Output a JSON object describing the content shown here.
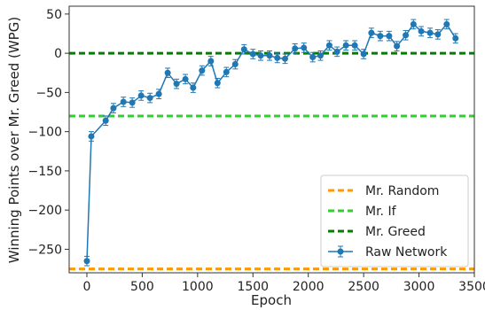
{
  "chart_data": {
    "type": "line",
    "title": "",
    "xlabel": "Epoch",
    "ylabel": "Winning Points over Mr. Greed (WPG)",
    "xlim": [
      -160,
      3500
    ],
    "ylim": [
      -280,
      60
    ],
    "xticks": [
      0,
      500,
      1000,
      1500,
      2000,
      2500,
      3000,
      3500
    ],
    "yticks": [
      -250,
      -200,
      -150,
      -100,
      -50,
      0,
      50
    ],
    "xtick_labels": [
      "0",
      "500",
      "1000",
      "1500",
      "2000",
      "2500",
      "3000",
      "3500"
    ],
    "ytick_labels": [
      "−250",
      "−200",
      "−150",
      "−100",
      "−50",
      "0",
      "50"
    ],
    "grid": false,
    "legend_position": "bottom-right",
    "reference_lines": [
      {
        "name": "Mr. Random",
        "y": -275,
        "color": "#ff9900"
      },
      {
        "name": "Mr. If",
        "y": -80,
        "color": "#33cc33"
      },
      {
        "name": "Mr. Greed",
        "y": 0,
        "color": "#008000"
      }
    ],
    "series": [
      {
        "name": "Raw Network",
        "color": "#1f77b4",
        "error": 6,
        "points": [
          {
            "x": 0,
            "y": -265
          },
          {
            "x": 40,
            "y": -106
          },
          {
            "x": 170,
            "y": -86
          },
          {
            "x": 240,
            "y": -70
          },
          {
            "x": 330,
            "y": -62
          },
          {
            "x": 410,
            "y": -63
          },
          {
            "x": 490,
            "y": -54
          },
          {
            "x": 570,
            "y": -57
          },
          {
            "x": 650,
            "y": -52
          },
          {
            "x": 730,
            "y": -25
          },
          {
            "x": 810,
            "y": -39
          },
          {
            "x": 890,
            "y": -33
          },
          {
            "x": 960,
            "y": -44
          },
          {
            "x": 1040,
            "y": -22
          },
          {
            "x": 1120,
            "y": -10
          },
          {
            "x": 1180,
            "y": -38
          },
          {
            "x": 1260,
            "y": -24
          },
          {
            "x": 1340,
            "y": -14
          },
          {
            "x": 1420,
            "y": 5
          },
          {
            "x": 1500,
            "y": -1
          },
          {
            "x": 1570,
            "y": -3
          },
          {
            "x": 1650,
            "y": -3
          },
          {
            "x": 1720,
            "y": -6
          },
          {
            "x": 1790,
            "y": -7
          },
          {
            "x": 1880,
            "y": 6
          },
          {
            "x": 1960,
            "y": 7
          },
          {
            "x": 2040,
            "y": -5
          },
          {
            "x": 2110,
            "y": -3
          },
          {
            "x": 2190,
            "y": 10
          },
          {
            "x": 2260,
            "y": 2
          },
          {
            "x": 2340,
            "y": 10
          },
          {
            "x": 2420,
            "y": 10
          },
          {
            "x": 2500,
            "y": -1
          },
          {
            "x": 2570,
            "y": 26
          },
          {
            "x": 2650,
            "y": 22
          },
          {
            "x": 2730,
            "y": 22
          },
          {
            "x": 2800,
            "y": 9
          },
          {
            "x": 2880,
            "y": 23
          },
          {
            "x": 2950,
            "y": 37
          },
          {
            "x": 3020,
            "y": 28
          },
          {
            "x": 3100,
            "y": 26
          },
          {
            "x": 3170,
            "y": 24
          },
          {
            "x": 3250,
            "y": 37
          },
          {
            "x": 3330,
            "y": 19
          }
        ]
      }
    ]
  }
}
